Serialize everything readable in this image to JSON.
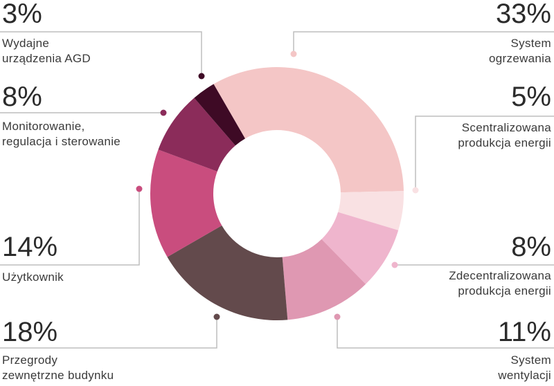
{
  "chart_data": {
    "type": "pie",
    "donut": true,
    "categories": [
      "System\nogrzewania",
      "Scentralizowana\nprodukcja energii",
      "Zdecentralizowana\nprodukcja energii",
      "System\nwentylacji",
      "Przegrody\nzewnętrzne budynku",
      "Użytkownik",
      "Monitorowanie,\nregulacja i sterowanie",
      "Wydajne\nurządzenia AGD"
    ],
    "values": [
      33,
      5,
      8,
      11,
      18,
      14,
      8,
      3
    ],
    "value_labels": [
      "33%",
      "5%",
      "8%",
      "11%",
      "18%",
      "14%",
      "8%",
      "3%"
    ],
    "colors": [
      "#f4c6c6",
      "#f9e1e3",
      "#efb5cd",
      "#df98b2",
      "#634a4c",
      "#c94d7e",
      "#8b2c5a",
      "#3e0a25"
    ]
  }
}
